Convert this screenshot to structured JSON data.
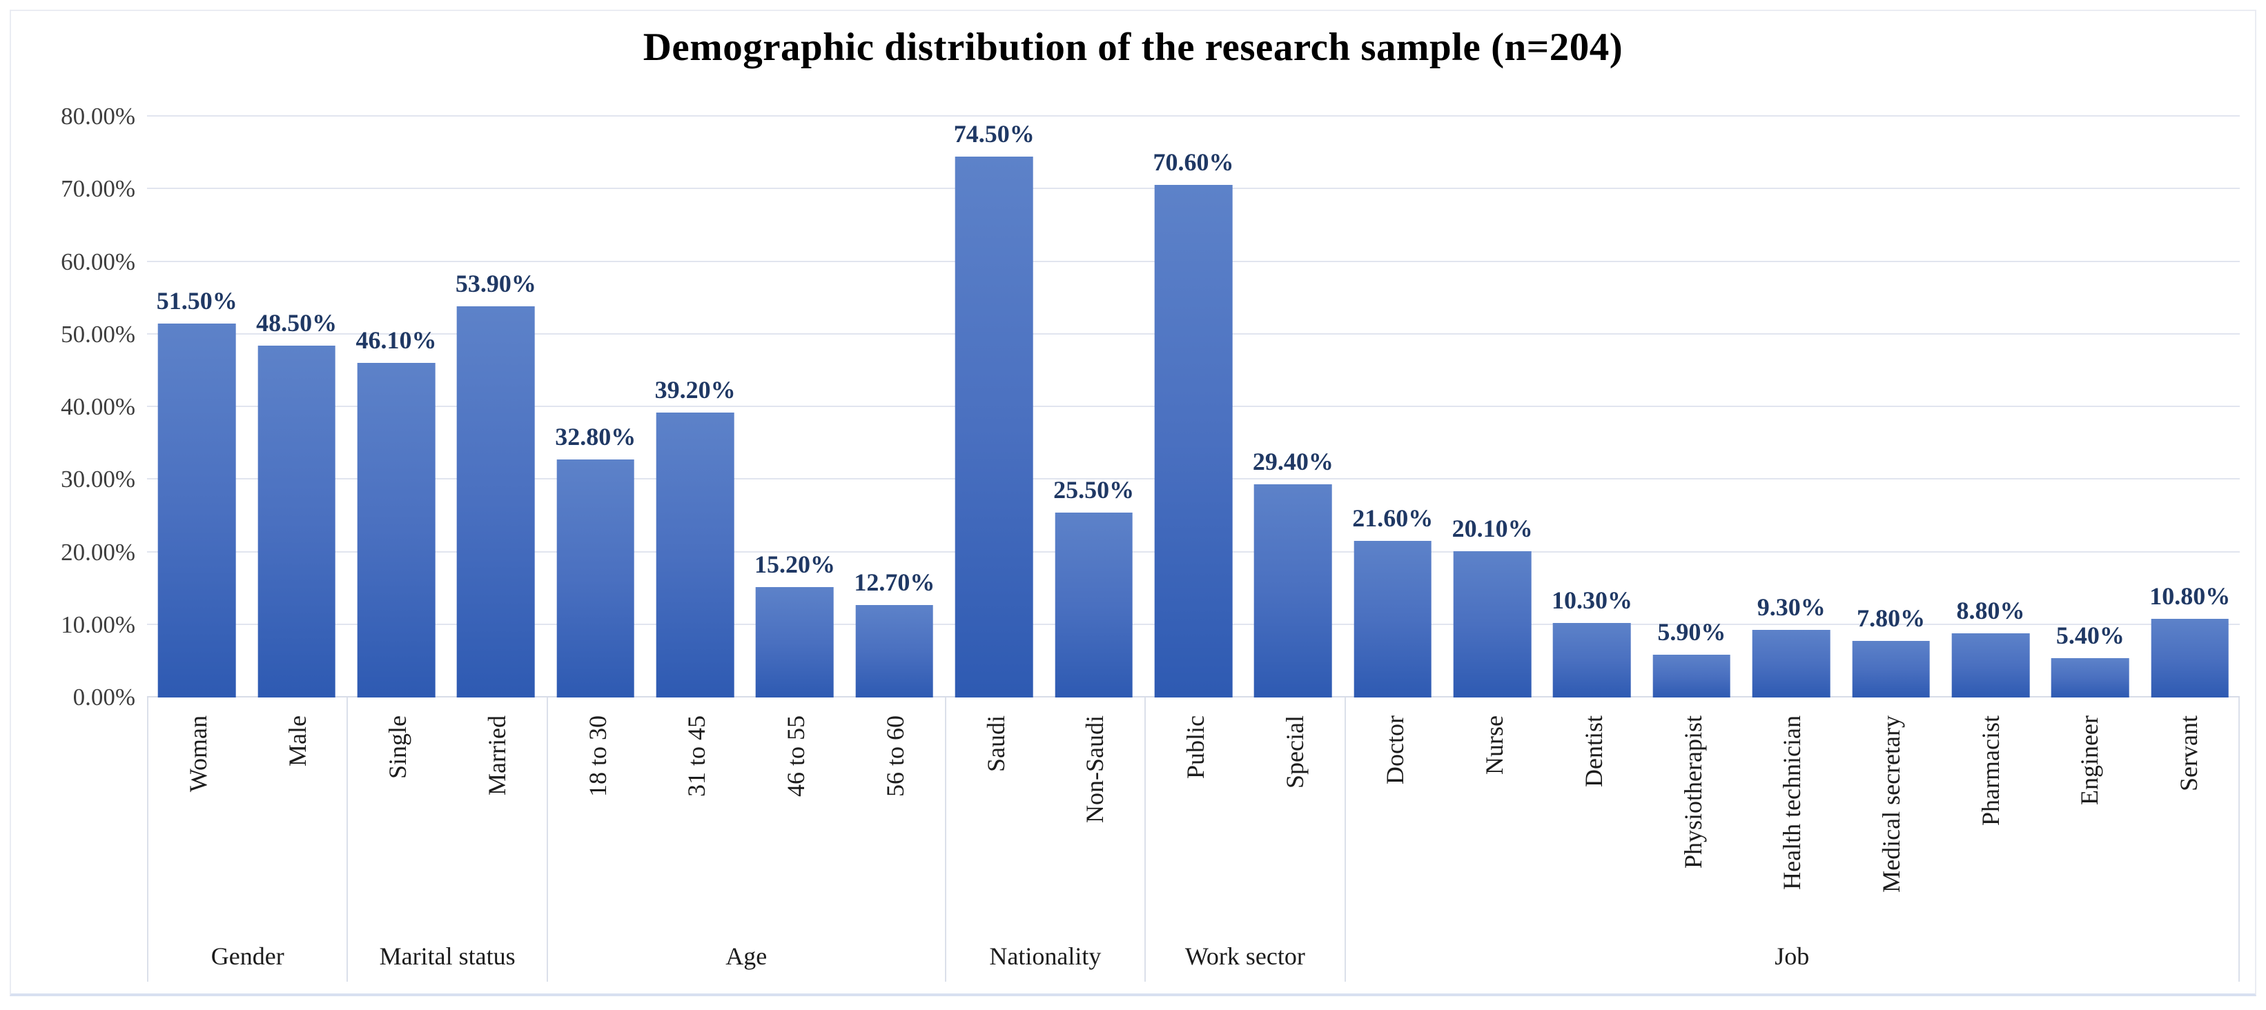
{
  "chart_data": {
    "type": "bar",
    "title": "Demographic distribution of the research sample (n=204)",
    "xlabel": "",
    "ylabel": "",
    "ylim": [
      0,
      80
    ],
    "y_ticks": [
      "0.00%",
      "10.00%",
      "20.00%",
      "30.00%",
      "40.00%",
      "50.00%",
      "60.00%",
      "70.00%",
      "80.00%"
    ],
    "grid": true,
    "legend_position": "none",
    "bar_gradient_top": "#5d82c9",
    "bar_gradient_bottom": "#2e5ab2",
    "data_label_color": "#1f3864",
    "groups": [
      {
        "name": "Gender",
        "categories": [
          "Woman",
          "Male"
        ],
        "values": [
          51.5,
          48.5
        ],
        "labels": [
          "51.50%",
          "48.50%"
        ]
      },
      {
        "name": "Marital status",
        "categories": [
          "Single",
          "Married"
        ],
        "values": [
          46.1,
          53.9
        ],
        "labels": [
          "46.10%",
          "53.90%"
        ]
      },
      {
        "name": "Age",
        "categories": [
          "18 to 30",
          "31 to 45",
          "46 to 55",
          "56 to 60"
        ],
        "values": [
          32.8,
          39.2,
          15.2,
          12.7
        ],
        "labels": [
          "32.80%",
          "39.20%",
          "15.20%",
          "12.70%"
        ]
      },
      {
        "name": "Nationality",
        "categories": [
          "Saudi",
          "Non-Saudi"
        ],
        "values": [
          74.5,
          25.5
        ],
        "labels": [
          "74.50%",
          "25.50%"
        ]
      },
      {
        "name": "Work sector",
        "categories": [
          "Public",
          "Special"
        ],
        "values": [
          70.6,
          29.4
        ],
        "labels": [
          "70.60%",
          "29.40%"
        ]
      },
      {
        "name": "Job",
        "categories": [
          "Doctor",
          "Nurse",
          "Dentist",
          "Physiotherapist",
          "Health technician",
          "Medical secretary",
          "Pharmacist",
          "Engineer",
          "Servant"
        ],
        "values": [
          21.6,
          20.1,
          10.3,
          5.9,
          9.3,
          7.8,
          8.8,
          5.4,
          10.8
        ],
        "labels": [
          "21.60%",
          "20.10%",
          "10.30%",
          "5.90%",
          "9.30%",
          "7.80%",
          "8.80%",
          "5.40%",
          "10.80%"
        ]
      }
    ]
  }
}
